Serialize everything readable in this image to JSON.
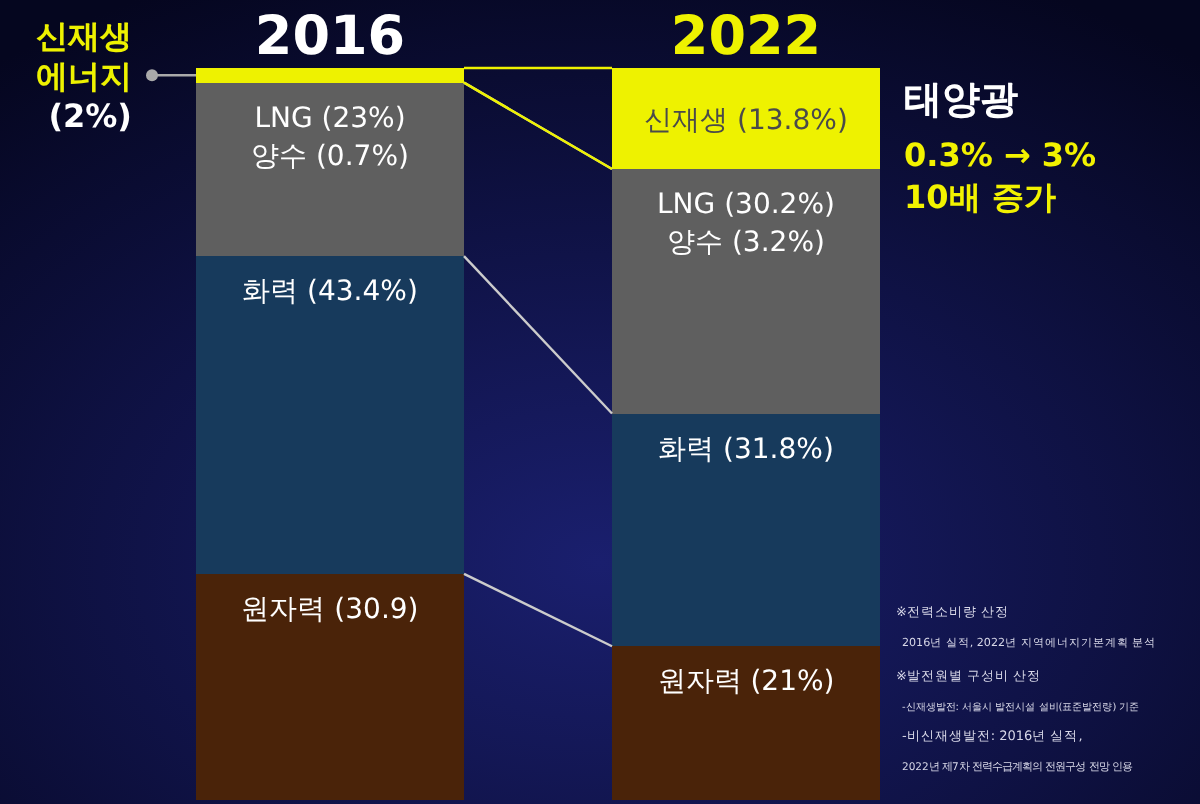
{
  "chart_data": {
    "type": "bar",
    "stacked": true,
    "categories": [
      "2016",
      "2022"
    ],
    "series": [
      {
        "color": "#4a2309",
        "values": [
          30.9,
          21
        ],
        "value_labels": [
          "원자력 (30.9)",
          "원자력 (21%)"
        ]
      },
      {
        "color": "#173a5c",
        "values": [
          43.4,
          31.8
        ],
        "value_labels": [
          "화력 (43.4%)",
          "화력 (31.8%)"
        ]
      },
      {
        "color": "#5f5f5f",
        "values": [
          23,
          30.2
        ],
        "value_labels": [
          "LNG (23%)",
          "LNG (30.2%)"
        ]
      },
      {
        "color": "#5f5f5f",
        "values": [
          0.7,
          3.2
        ],
        "value_labels": [
          "양수 (0.7%)",
          "양수 (3.2%)"
        ]
      },
      {
        "color": "#eef200",
        "values": [
          2,
          13.8
        ],
        "value_labels": [
          "신재생\n에너지\n(2%)",
          "신재생 (13.8%)"
        ]
      }
    ],
    "annotations": [
      "태양광",
      "0.3% → 3%\n10배 증가",
      "※전력소비량 산정\n2016년 실적, 2022년 지역에너지기본계획 분석",
      "※발전원별 구성비 산정\n-신재생발전: 서울시 발전시설 설비(표준발전량) 기준\n-비신재생발전: 2016년 실적,\n2022년 제7차 전력수급계획의 전원구성 전망 인용"
    ]
  }
}
